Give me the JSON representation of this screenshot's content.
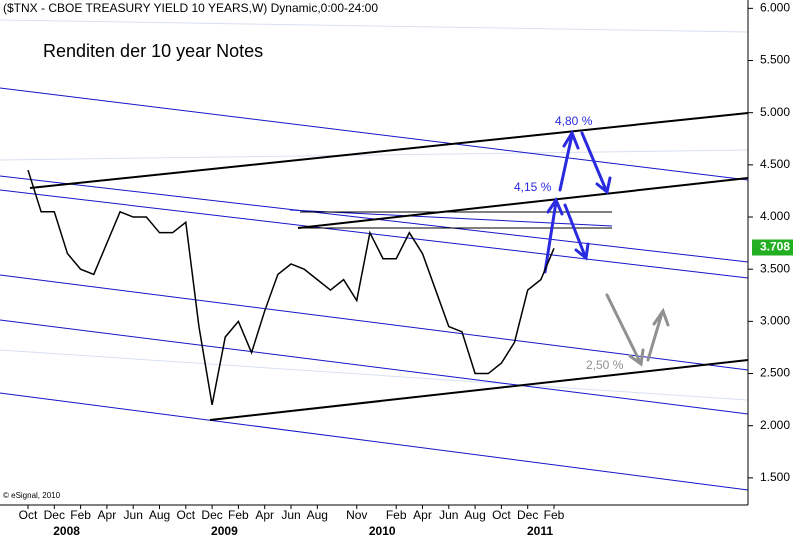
{
  "chart_data": {
    "type": "line",
    "title": "($TNX - CBOE TREASURY YIELD 10 YEARS,W) Dynamic,0:00-24:00",
    "subtitle": "Renditen der 10 year Notes",
    "copyright": "© eSignal, 2010",
    "annotations": [
      "4,80 %",
      "4,15 %",
      "2,50 %"
    ],
    "categories": [
      "Oct",
      null,
      "Dec",
      null,
      "Feb",
      null,
      "Apr",
      null,
      "Jun",
      null,
      "Aug",
      null,
      "Oct",
      null,
      "Dec",
      null,
      "Feb",
      null,
      "Apr",
      null,
      "Jun",
      null,
      "Aug",
      null,
      null,
      "Nov",
      null,
      null,
      "Feb",
      null,
      "Apr",
      null,
      "Jun",
      null,
      "Aug",
      null,
      "Oct",
      null,
      "Dec",
      null,
      "Feb"
    ],
    "years": [
      null,
      null,
      null,
      null,
      "2008",
      null,
      null,
      null,
      null,
      null,
      null,
      null,
      null,
      null,
      null,
      null,
      "2009",
      null,
      null,
      null,
      null,
      null,
      null,
      null,
      null,
      null,
      null,
      null,
      "2010",
      null,
      null,
      null,
      null,
      null,
      null,
      null,
      null,
      null,
      null,
      null,
      "2011"
    ],
    "series": [
      {
        "name": "$TNX",
        "color": "#000000",
        "values": [
          4.45,
          4.05,
          4.05,
          3.65,
          3.5,
          3.45,
          3.75,
          4.05,
          4.0,
          4.0,
          3.85,
          3.85,
          3.95,
          2.95,
          2.2,
          2.85,
          3.0,
          2.7,
          3.1,
          3.45,
          3.55,
          3.5,
          3.4,
          3.3,
          3.4,
          3.2,
          3.85,
          3.6,
          3.6,
          3.85,
          3.65,
          3.3,
          2.95,
          2.9,
          2.5,
          2.5,
          2.6,
          2.8,
          3.3,
          3.4,
          3.7
        ]
      }
    ],
    "last_value": {
      "value": 3.708,
      "label": "3.708"
    },
    "ylim": [
      1.24,
      6.08
    ],
    "yticks": [
      {
        "value": 1.5,
        "label": "1.500"
      },
      {
        "value": 2,
        "label": "2.000"
      },
      {
        "value": 2.5,
        "label": "2.500"
      },
      {
        "value": 3,
        "label": "3.000"
      },
      {
        "value": 3.5,
        "label": "3.500"
      },
      {
        "value": 4,
        "label": "4.000"
      },
      {
        "value": 4.5,
        "label": "4.500"
      },
      {
        "value": 5,
        "label": "5.000"
      },
      {
        "value": 5.5,
        "label": "5.500"
      },
      {
        "value": 6,
        "label": "6.000"
      }
    ],
    "grid": false
  }
}
